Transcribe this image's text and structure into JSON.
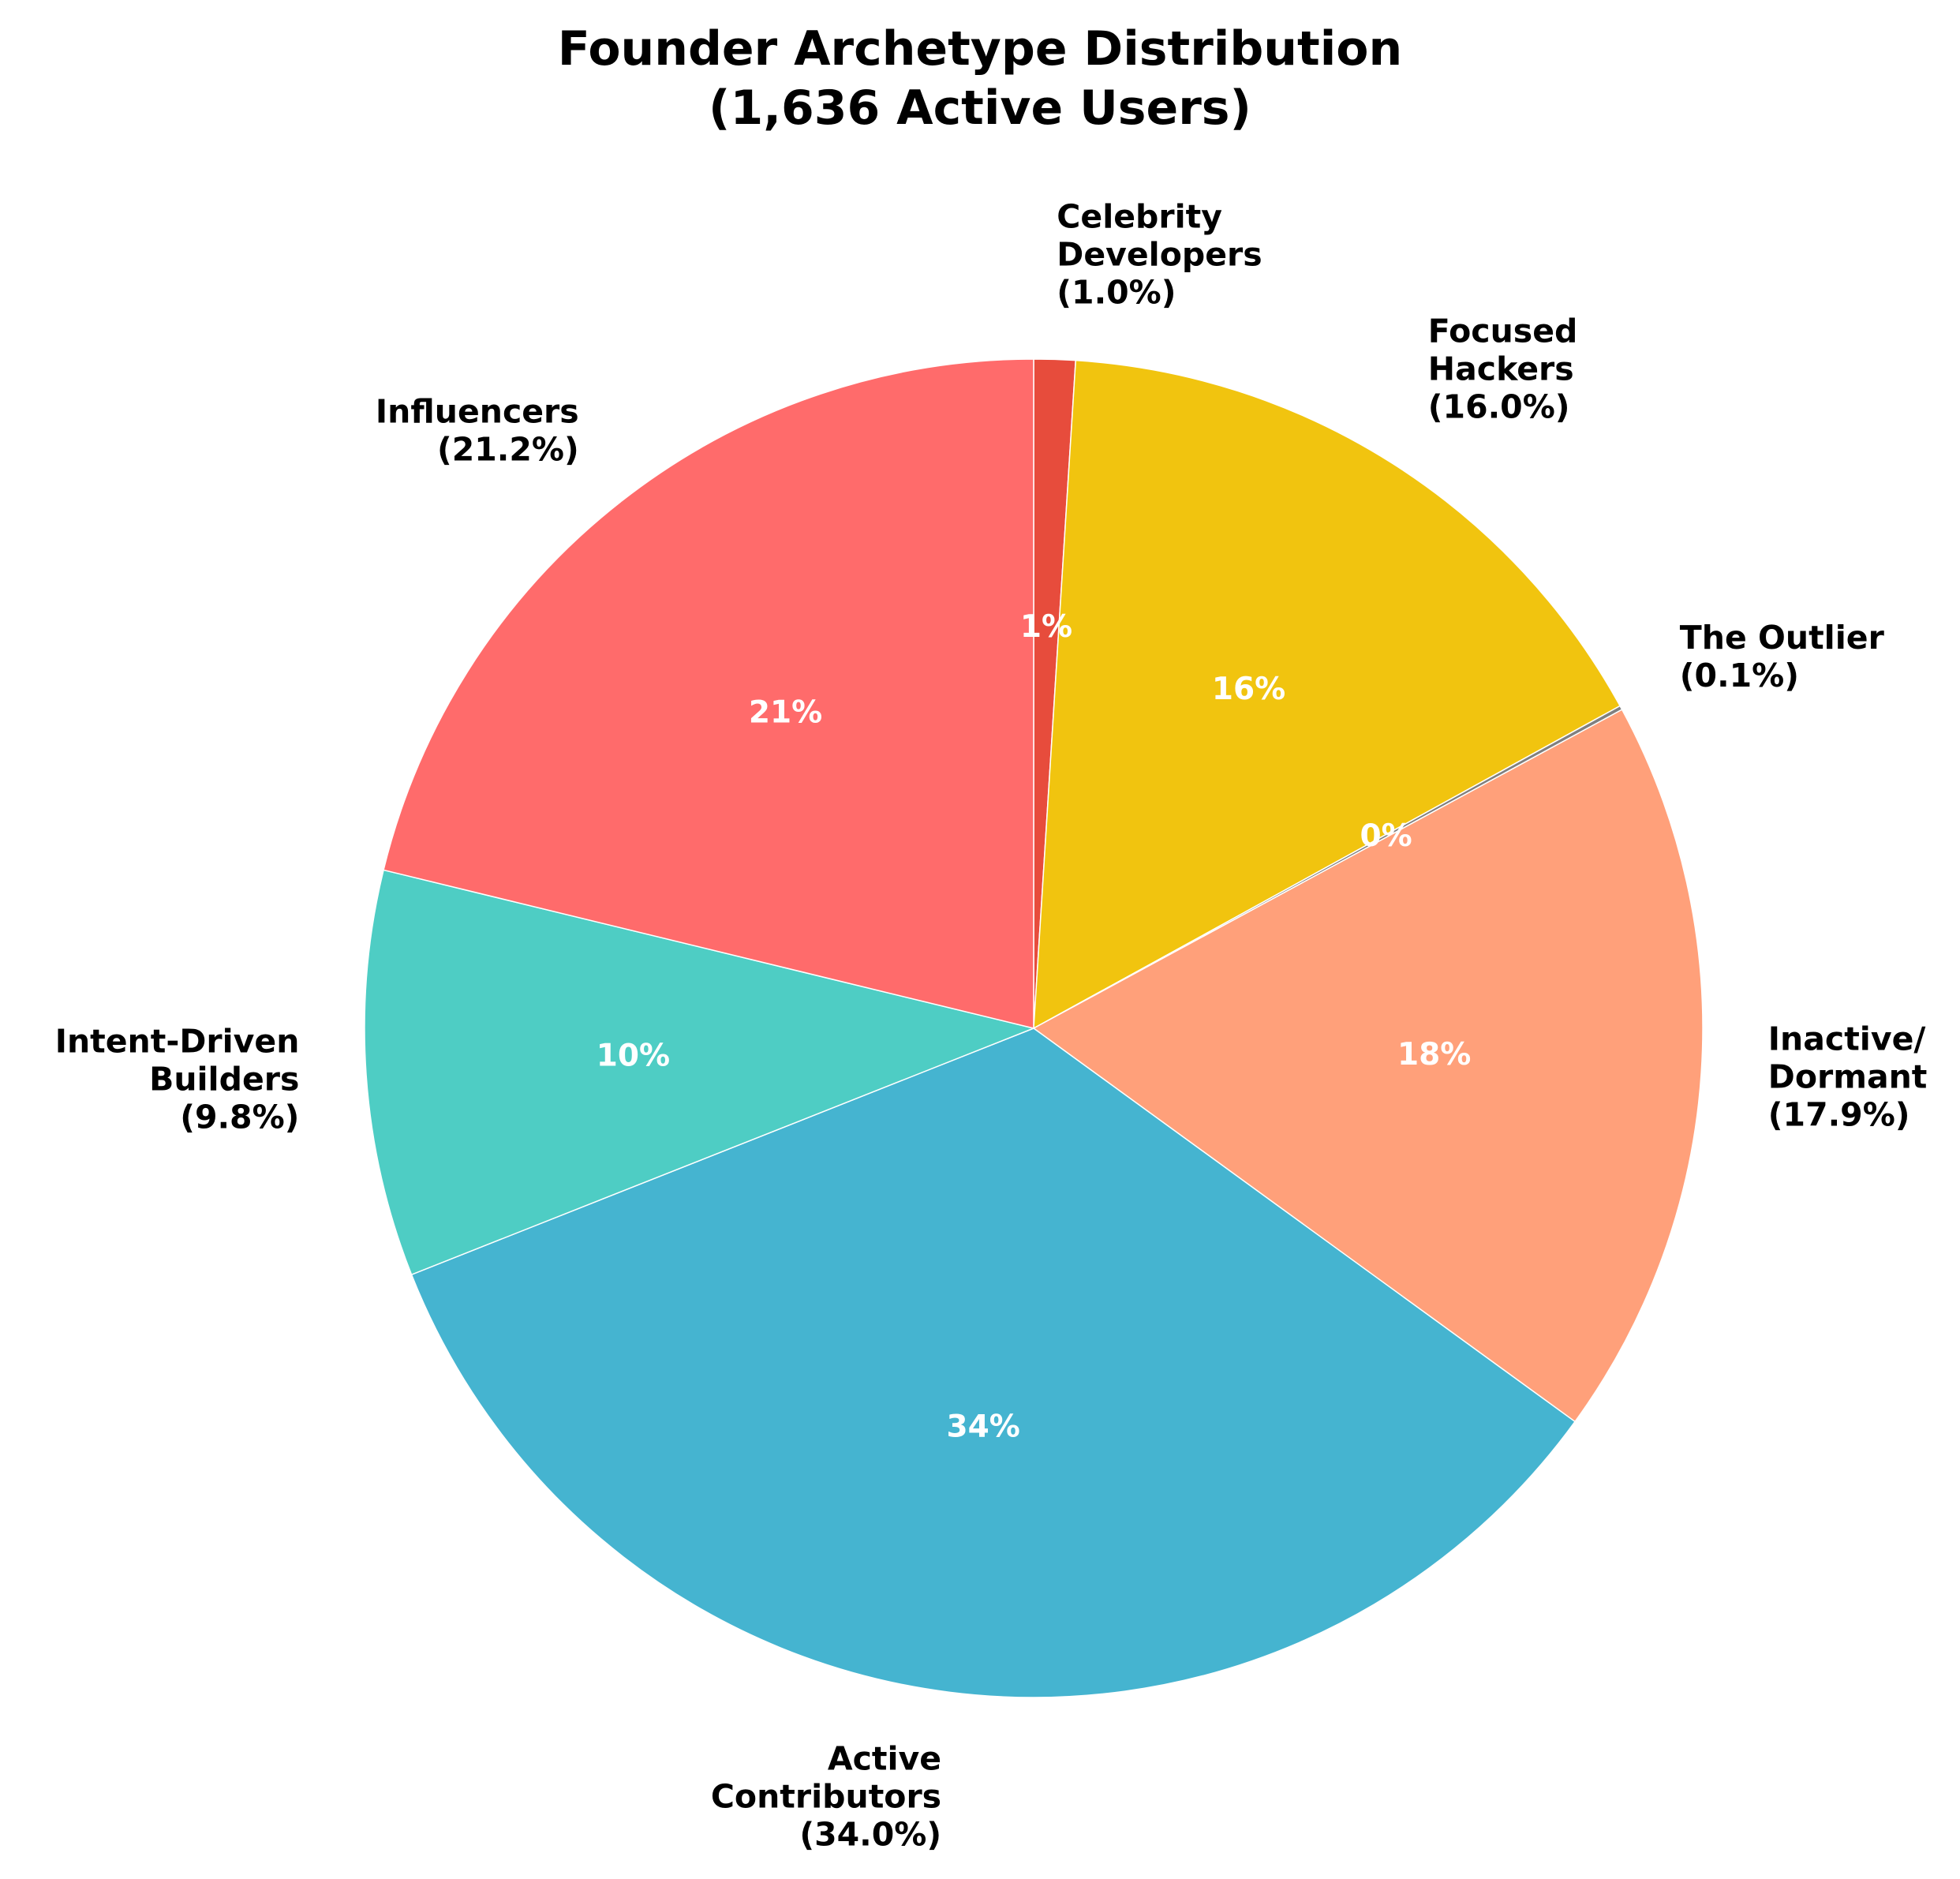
{
  "chart_data": {
    "type": "pie",
    "title_lines": [
      "Founder Archetype Distribution",
      "(1,636 Active Users)"
    ],
    "start_angle_deg": 90,
    "direction": "clockwise",
    "slices": [
      {
        "name": "Celebrity Developers",
        "label_lines": [
          "Celebrity",
          "Developers",
          "(1.0%)"
        ],
        "value": 1.0,
        "pct_text": "1%",
        "color": "#E74C3C"
      },
      {
        "name": "Focused Hackers",
        "label_lines": [
          "Focused",
          "Hackers",
          "(16.0%)"
        ],
        "value": 16.0,
        "pct_text": "16%",
        "color": "#F1C40F"
      },
      {
        "name": "The Outlier",
        "label_lines": [
          "The Outlier",
          "(0.1%)"
        ],
        "value": 0.1,
        "pct_text": "0%",
        "color": "#808080"
      },
      {
        "name": "Inactive/ Dormant",
        "label_lines": [
          "Inactive/",
          "Dormant",
          "(17.9%)"
        ],
        "value": 17.9,
        "pct_text": "18%",
        "color": "#FFA07A"
      },
      {
        "name": "Active Contributors",
        "label_lines": [
          "Active",
          "Contributors",
          "(34.0%)"
        ],
        "value": 34.0,
        "pct_text": "34%",
        "color": "#45B4D0"
      },
      {
        "name": "Intent-Driven Builders",
        "label_lines": [
          "Intent-Driven",
          "Builders",
          "(9.8%)"
        ],
        "value": 9.8,
        "pct_text": "10%",
        "color": "#4ECDC4"
      },
      {
        "name": "Influencers",
        "label_lines": [
          "Influencers",
          "(21.2%)"
        ],
        "value": 21.2,
        "pct_text": "21%",
        "color": "#FF6B6B"
      }
    ]
  }
}
